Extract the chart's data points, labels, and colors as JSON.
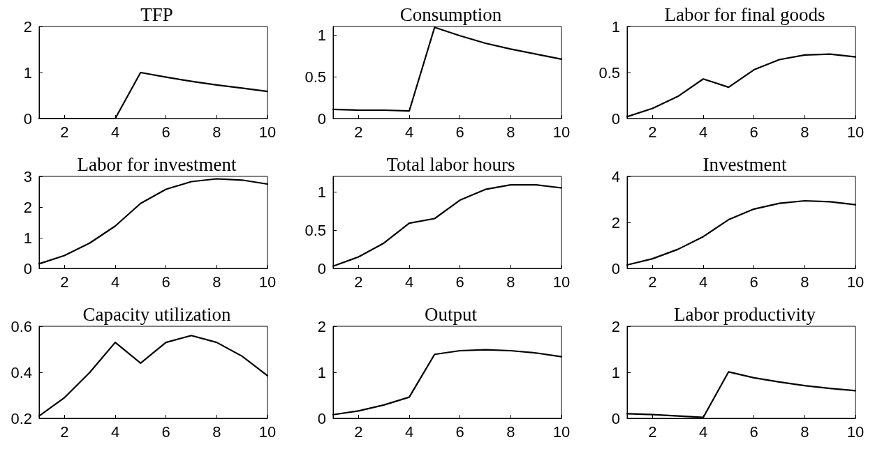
{
  "chart_data": [
    {
      "type": "line",
      "title": "TFP",
      "x": [
        1,
        2,
        3,
        4,
        5,
        6,
        7,
        8,
        9,
        10
      ],
      "values": [
        0,
        0,
        0,
        0,
        1,
        0.9,
        0.81,
        0.73,
        0.66,
        0.59
      ],
      "color": "#000000",
      "xlim": [
        1,
        10
      ],
      "xticks": [
        2,
        4,
        6,
        8,
        10
      ],
      "ylim": [
        0,
        2
      ],
      "yticks": [
        0,
        1,
        2
      ],
      "grid": false,
      "marker": "none",
      "line_style": "solid"
    },
    {
      "type": "line",
      "title": "Consumption",
      "x": [
        1,
        2,
        3,
        4,
        5,
        6,
        7,
        8,
        9,
        10
      ],
      "values": [
        0.11,
        0.1,
        0.1,
        0.09,
        1.09,
        0.99,
        0.9,
        0.83,
        0.77,
        0.71
      ],
      "color": "#000000",
      "xlim": [
        1,
        10
      ],
      "xticks": [
        2,
        4,
        6,
        8,
        10
      ],
      "ylim": [
        0,
        1.1
      ],
      "yticks": [
        0,
        0.5,
        1
      ],
      "grid": false,
      "marker": "none",
      "line_style": "solid"
    },
    {
      "type": "line",
      "title": "Labor for final goods",
      "x": [
        1,
        2,
        3,
        4,
        5,
        6,
        7,
        8,
        9,
        10
      ],
      "values": [
        0.02,
        0.11,
        0.24,
        0.43,
        0.34,
        0.53,
        0.64,
        0.69,
        0.7,
        0.67
      ],
      "color": "#000000",
      "xlim": [
        1,
        10
      ],
      "xticks": [
        2,
        4,
        6,
        8,
        10
      ],
      "ylim": [
        0,
        1
      ],
      "yticks": [
        0,
        0.5,
        1
      ],
      "grid": false,
      "marker": "none",
      "line_style": "solid"
    },
    {
      "type": "line",
      "title": "Labor for investment",
      "x": [
        1,
        2,
        3,
        4,
        5,
        6,
        7,
        8,
        9,
        10
      ],
      "values": [
        0.15,
        0.42,
        0.83,
        1.38,
        2.12,
        2.58,
        2.83,
        2.92,
        2.88,
        2.75
      ],
      "color": "#000000",
      "xlim": [
        1,
        10
      ],
      "xticks": [
        2,
        4,
        6,
        8,
        10
      ],
      "ylim": [
        0,
        3
      ],
      "yticks": [
        0,
        1,
        2,
        3
      ],
      "grid": false,
      "marker": "none",
      "line_style": "solid"
    },
    {
      "type": "line",
      "title": "Total labor hours",
      "x": [
        1,
        2,
        3,
        4,
        5,
        6,
        7,
        8,
        9,
        10
      ],
      "values": [
        0.03,
        0.15,
        0.33,
        0.59,
        0.65,
        0.89,
        1.03,
        1.09,
        1.09,
        1.05
      ],
      "color": "#000000",
      "xlim": [
        1,
        10
      ],
      "xticks": [
        2,
        4,
        6,
        8,
        10
      ],
      "ylim": [
        0,
        1.2
      ],
      "yticks": [
        0,
        0.5,
        1
      ],
      "grid": false,
      "marker": "none",
      "line_style": "solid"
    },
    {
      "type": "line",
      "title": "Investment",
      "x": [
        1,
        2,
        3,
        4,
        5,
        6,
        7,
        8,
        9,
        10
      ],
      "values": [
        0.15,
        0.42,
        0.83,
        1.38,
        2.12,
        2.58,
        2.83,
        2.94,
        2.9,
        2.77
      ],
      "color": "#000000",
      "xlim": [
        1,
        10
      ],
      "xticks": [
        2,
        4,
        6,
        8,
        10
      ],
      "ylim": [
        0,
        4
      ],
      "yticks": [
        0,
        2,
        4
      ],
      "grid": false,
      "marker": "none",
      "line_style": "solid"
    },
    {
      "type": "line",
      "title": "Capacity utilization",
      "x": [
        1,
        2,
        3,
        4,
        5,
        6,
        7,
        8,
        9,
        10
      ],
      "values": [
        0.21,
        0.29,
        0.4,
        0.53,
        0.44,
        0.53,
        0.56,
        0.53,
        0.47,
        0.385
      ],
      "color": "#000000",
      "xlim": [
        1,
        10
      ],
      "xticks": [
        2,
        4,
        6,
        8,
        10
      ],
      "ylim": [
        0.2,
        0.6
      ],
      "yticks": [
        0.2,
        0.4,
        0.6
      ],
      "grid": false,
      "marker": "none",
      "line_style": "solid"
    },
    {
      "type": "line",
      "title": "Output",
      "x": [
        1,
        2,
        3,
        4,
        5,
        6,
        7,
        8,
        9,
        10
      ],
      "values": [
        0.08,
        0.16,
        0.29,
        0.46,
        1.39,
        1.47,
        1.49,
        1.47,
        1.42,
        1.34
      ],
      "color": "#000000",
      "xlim": [
        1,
        10
      ],
      "xticks": [
        2,
        4,
        6,
        8,
        10
      ],
      "ylim": [
        0,
        2
      ],
      "yticks": [
        0,
        1,
        2
      ],
      "grid": false,
      "marker": "none",
      "line_style": "solid"
    },
    {
      "type": "line",
      "title": "Labor productivity",
      "x": [
        1,
        2,
        3,
        4,
        5,
        6,
        7,
        8,
        9,
        10
      ],
      "values": [
        0.1,
        0.08,
        0.05,
        0.02,
        1.01,
        0.88,
        0.79,
        0.71,
        0.65,
        0.6
      ],
      "color": "#000000",
      "xlim": [
        1,
        10
      ],
      "xticks": [
        2,
        4,
        6,
        8,
        10
      ],
      "ylim": [
        0,
        2
      ],
      "yticks": [
        0,
        1,
        2
      ],
      "grid": false,
      "marker": "none",
      "line_style": "solid"
    }
  ]
}
